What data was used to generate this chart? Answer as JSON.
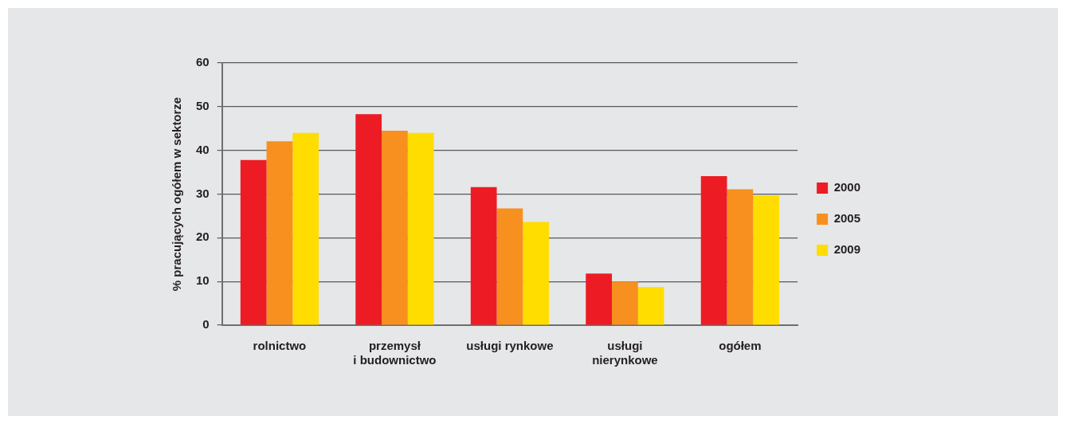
{
  "chart_data": {
    "type": "bar",
    "ylabel": "% pracujących ogółem w sektorze",
    "categories": [
      "rolnictwo",
      "przemysł\ni budownictwo",
      "usługi rynkowe",
      "usługi\nnierynkowe",
      "ogółem"
    ],
    "series": [
      {
        "name": "2000",
        "color": "#ed1c24",
        "values": [
          37.8,
          48.3,
          31.6,
          11.8,
          34.1
        ]
      },
      {
        "name": "2005",
        "color": "#f7901e",
        "values": [
          42.1,
          44.5,
          26.7,
          10.0,
          31.1
        ]
      },
      {
        "name": "2009",
        "color": "#ffdd00",
        "values": [
          44.0,
          44.0,
          23.6,
          8.7,
          29.7
        ]
      }
    ],
    "ylim": [
      0,
      60
    ],
    "yticks": [
      0,
      10,
      20,
      30,
      40,
      50,
      60
    ],
    "grid": "y",
    "legend": "right"
  }
}
